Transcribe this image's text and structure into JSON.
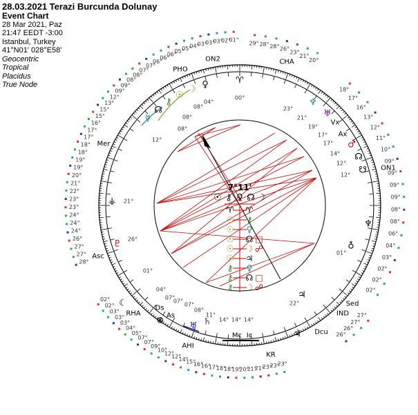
{
  "header": {
    "title": "28.03.2021 Terazi Burcunda Dolunay",
    "chart_type": "Event Chart",
    "date": "28 Mar 2021, Paz",
    "time": "21:47  EEDT -3:00",
    "place": "Istanbul, Turkey",
    "coords": "41°N01' 028°E58'",
    "options": [
      "Geocentric",
      "Tropical",
      "Placidus",
      "True Node"
    ]
  },
  "colors": {
    "aspect_red": "#d00000",
    "sun_moon": "#a09020",
    "chiron": "#208020",
    "venus": "#208888",
    "fire": "#e03030",
    "earth": "#30b030",
    "air": "#20a0c0",
    "water": "#3030c0"
  },
  "midpoint_tree": {
    "degree": "7°11'",
    "top_row": [
      "☉",
      "⚷",
      "♀",
      "☊",
      "☽"
    ],
    "rows": [
      {
        "left": "♈",
        "right": "♈",
        "aspect": ""
      },
      {
        "left": "☉",
        "right": "⚷",
        "aspect": ""
      },
      {
        "left": "☉",
        "right": "♀",
        "aspect": ""
      },
      {
        "left": "☉",
        "right": "☊",
        "aspect": "□"
      },
      {
        "left": "☉",
        "right": "☽",
        "aspect": "☍"
      },
      {
        "left": "☉",
        "right": "♃",
        "aspect": ""
      },
      {
        "left": "⚷",
        "right": "♀",
        "aspect": ""
      },
      {
        "left": "⚷",
        "right": "☊",
        "aspect": "□"
      },
      {
        "left": "⚷",
        "right": "☽",
        "aspect": "☍"
      }
    ]
  },
  "point_labels": [
    "PHO",
    "ON2",
    "CHA",
    "Mer",
    "ON1",
    "Asc",
    "RHA",
    "IND",
    "Sed",
    "Dcu",
    "KR",
    "AHI",
    "Vx",
    "Ax",
    "As",
    "Ds",
    "Mc",
    "Ic"
  ],
  "planet_glyphs": [
    {
      "glyph": "☿",
      "color": "#208888"
    },
    {
      "glyph": "⚷",
      "color": "#208020"
    },
    {
      "glyph": "☉",
      "color": "#a09020"
    },
    {
      "glyph": "☽",
      "color": "#a09020"
    },
    {
      "glyph": "☊",
      "color": "#000000"
    },
    {
      "glyph": "♀",
      "color": "#000000"
    },
    {
      "glyph": "♈",
      "color": "#000000"
    },
    {
      "glyph": "♆",
      "color": "#208888"
    },
    {
      "glyph": "♅",
      "color": "#800080"
    },
    {
      "glyph": "♂",
      "color": "#d00000"
    },
    {
      "glyph": "☊",
      "color": "#000000"
    },
    {
      "glyph": "☋",
      "color": "#000000"
    },
    {
      "glyph": "♇",
      "color": "#d00000"
    },
    {
      "glyph": "⚶",
      "color": "#000000"
    },
    {
      "glyph": "♅",
      "color": "#2020c0"
    },
    {
      "glyph": "♄",
      "color": "#a02020"
    },
    {
      "glyph": "⊗",
      "color": "#000000"
    },
    {
      "glyph": "♃",
      "color": "#000000"
    },
    {
      "glyph": "☾",
      "color": "#000000"
    },
    {
      "glyph": "♁",
      "color": "#000000"
    },
    {
      "glyph": "♆",
      "color": "#000000"
    },
    {
      "glyph": "♃",
      "color": "#000000"
    }
  ],
  "house_degree_labels": [
    "00°",
    "04°",
    "08°",
    "08°",
    "08°",
    "12°",
    "23°",
    "21°",
    "19°",
    "17°",
    "17°",
    "14°",
    "12°",
    "12°",
    "21°",
    "26°",
    "01°",
    "04°",
    "07°",
    "07°",
    "07°",
    "08°",
    "11°",
    "14°",
    "14°",
    "14°",
    "22°",
    "01°"
  ],
  "outer_degrees": {
    "upper_left": [
      "01°",
      "02°",
      "03°",
      "03°",
      "03°",
      "04°",
      "05°",
      "05°",
      "06°",
      "06°",
      "06°",
      "07°",
      "07°",
      "08°",
      "08°",
      "09°",
      "09°",
      "12°",
      "13°",
      "15°",
      "15°",
      "16°",
      "17°",
      "17°",
      "18°",
      "18°",
      "19°",
      "19°",
      "20°",
      "21°",
      "22°",
      "23°",
      "23°",
      "24°",
      "24°",
      "24°",
      "26°",
      "27°",
      "27°",
      "28°"
    ],
    "upper_right": [
      "29°",
      "28°",
      "28°",
      "26°",
      "23°",
      "21°",
      "20°"
    ],
    "right": [
      "18°",
      "17°",
      "16°",
      "13°",
      "12°",
      "11°",
      "10°",
      "09°",
      "09°",
      "09°",
      "09°",
      "08°",
      "08°",
      "06°",
      "04°",
      "03°",
      "02°",
      "02°",
      "02°"
    ],
    "lower_right": [
      "27°",
      "27°",
      "26°",
      "26°"
    ],
    "bottom": [
      "02°",
      "02°",
      "03°",
      "03°",
      "03°",
      "04°",
      "05°",
      "07°",
      "07°",
      "09°",
      "10°",
      "12°",
      "12°",
      "14°",
      "15°",
      "16°",
      "16°",
      "17°",
      "18°",
      "18°",
      "19°",
      "20°",
      "21°",
      "21°",
      "23°",
      "23°",
      "23°"
    ]
  }
}
